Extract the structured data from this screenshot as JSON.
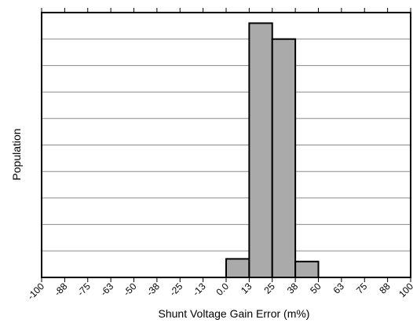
{
  "chart_data": {
    "type": "bar",
    "title": "",
    "xlabel": "Shunt Voltage Gain Error (m%)",
    "ylabel": "Population",
    "x_tick_labels": [
      "-100",
      "-88",
      "-75",
      "-63",
      "-50",
      "-38",
      "-25",
      "-13",
      "0.0",
      "13",
      "25",
      "38",
      "50",
      "63",
      "75",
      "88",
      "100"
    ],
    "bins": [
      {
        "from": 0.0,
        "to": 13,
        "value": 0.07
      },
      {
        "from": 13,
        "to": 25,
        "value": 0.96
      },
      {
        "from": 25,
        "to": 38,
        "value": 0.9
      },
      {
        "from": 38,
        "to": 50,
        "value": 0.06
      }
    ],
    "ylim": [
      0,
      1
    ],
    "y_gridlines": 10,
    "grid": true,
    "legend": "none",
    "bar_color": "#aaaaaa"
  }
}
